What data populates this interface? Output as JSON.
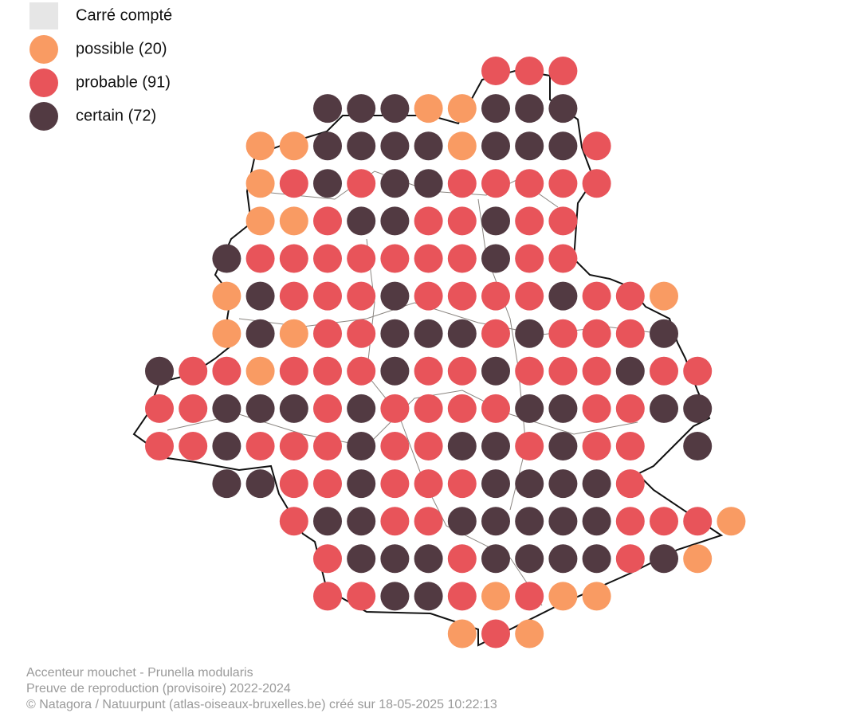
{
  "legend": [
    {
      "label": "Carré compté",
      "color": "#e6e6e6"
    },
    {
      "label": "possible (20)",
      "color": "#f99b63"
    },
    {
      "label": "probable (91)",
      "color": "#e8545a"
    },
    {
      "label": "certain (72)",
      "color": "#523a42"
    }
  ],
  "map": {
    "grid": [
      [
        null,
        null,
        null,
        null,
        null,
        null,
        null,
        null,
        null,
        null,
        2,
        2,
        2,
        null,
        null,
        null,
        null,
        null
      ],
      [
        null,
        null,
        null,
        null,
        null,
        3,
        3,
        3,
        1,
        1,
        3,
        3,
        3,
        null,
        null,
        null,
        null,
        null
      ],
      [
        null,
        null,
        null,
        1,
        1,
        3,
        3,
        3,
        3,
        1,
        3,
        3,
        3,
        2,
        null,
        null,
        null,
        null
      ],
      [
        null,
        null,
        null,
        1,
        2,
        3,
        2,
        3,
        3,
        2,
        2,
        2,
        2,
        2,
        null,
        null,
        null,
        null
      ],
      [
        null,
        null,
        null,
        1,
        1,
        2,
        3,
        3,
        2,
        2,
        3,
        2,
        2,
        null,
        null,
        null,
        null,
        null
      ],
      [
        null,
        null,
        3,
        2,
        2,
        2,
        2,
        2,
        2,
        2,
        3,
        2,
        2,
        null,
        null,
        null,
        null,
        null
      ],
      [
        null,
        null,
        1,
        3,
        2,
        2,
        2,
        3,
        2,
        2,
        2,
        2,
        3,
        2,
        2,
        1,
        null,
        null
      ],
      [
        null,
        null,
        1,
        3,
        1,
        2,
        2,
        3,
        3,
        3,
        2,
        3,
        2,
        2,
        2,
        3,
        null,
        null
      ],
      [
        3,
        2,
        2,
        1,
        2,
        2,
        2,
        3,
        2,
        2,
        3,
        2,
        2,
        2,
        3,
        2,
        2,
        null
      ],
      [
        2,
        2,
        3,
        3,
        3,
        2,
        3,
        2,
        2,
        2,
        2,
        3,
        3,
        2,
        2,
        3,
        3,
        null
      ],
      [
        2,
        2,
        3,
        2,
        2,
        2,
        3,
        2,
        2,
        3,
        3,
        2,
        3,
        2,
        2,
        null,
        3,
        null
      ],
      [
        null,
        null,
        3,
        3,
        2,
        2,
        3,
        2,
        2,
        2,
        3,
        3,
        3,
        3,
        2,
        null,
        null,
        null
      ],
      [
        null,
        null,
        null,
        null,
        2,
        3,
        3,
        2,
        2,
        3,
        3,
        3,
        3,
        3,
        2,
        2,
        2,
        1
      ],
      [
        null,
        null,
        null,
        null,
        null,
        2,
        3,
        3,
        3,
        2,
        3,
        3,
        3,
        3,
        2,
        3,
        1,
        null
      ],
      [
        null,
        null,
        null,
        null,
        null,
        2,
        2,
        3,
        3,
        2,
        1,
        2,
        1,
        1,
        null,
        null,
        null,
        null
      ],
      [
        null,
        null,
        null,
        null,
        null,
        null,
        null,
        null,
        null,
        1,
        2,
        1,
        null,
        null,
        null,
        null,
        null,
        null
      ]
    ]
  },
  "caption": {
    "lines": [
      "Accenteur mouchet - Prunella modularis",
      "Preuve de reproduction (provisoire) 2022-2024",
      "© Natagora / Natuurpunt (atlas-oiseaux-bruxelles.be) créé sur 18-05-2025 10:22:13"
    ]
  }
}
